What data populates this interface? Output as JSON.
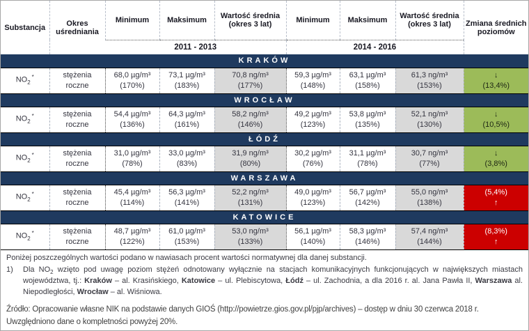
{
  "colors": {
    "banner_navy": "#1F3A5F",
    "decrease_green": "#9CBB59",
    "increase_red": "#CC0000",
    "average_gray": "#D9D9D9"
  },
  "header": {
    "substance": "Substancja",
    "period": "Okres uśredniania",
    "min": "Minimum",
    "max": "Maksimum",
    "avg": "Wartość średnia (okres 3 lat)",
    "change": "Zmiana średnich poziomów",
    "range1": "2011 - 2013",
    "range2": "2014 - 2016"
  },
  "cities": [
    {
      "name": "KRAKÓW",
      "substance": {
        "base": "NO",
        "sub": "2",
        "mark": "*"
      },
      "period": "stężenia roczne",
      "p1": {
        "min": {
          "v": "68,0 µg/m³",
          "p": "(170%)"
        },
        "max": {
          "v": "73,1 µg/m³",
          "p": "(183%)"
        },
        "avg": {
          "v": "70,8 ng/m³",
          "p": "(177%)"
        }
      },
      "p2": {
        "min": {
          "v": "59,3 µg/m³",
          "p": "(148%)"
        },
        "max": {
          "v": "63,1 µg/m³",
          "p": "(158%)"
        },
        "avg": {
          "v": "61,3 ng/m³",
          "p": "(153%)"
        }
      },
      "change": {
        "variant": "down",
        "line1": "↓",
        "line2": "(13,4%)"
      }
    },
    {
      "name": "WROCŁAW",
      "substance": {
        "base": "NO",
        "sub": "2",
        "mark": "*"
      },
      "period": "stężenia roczne",
      "p1": {
        "min": {
          "v": "54,4 µg/m³",
          "p": "(136%)"
        },
        "max": {
          "v": "64,3 µg/m³",
          "p": "(161%)"
        },
        "avg": {
          "v": "58,2 ng/m³",
          "p": "(146%)"
        }
      },
      "p2": {
        "min": {
          "v": "49,2 µg/m³",
          "p": "(123%)"
        },
        "max": {
          "v": "53,8 µg/m³",
          "p": "(135%)"
        },
        "avg": {
          "v": "52,1 ng/m³",
          "p": "(130%)"
        }
      },
      "change": {
        "variant": "down",
        "line1": "↓",
        "line2": "(10,5%)"
      }
    },
    {
      "name": "ŁÓDŹ",
      "substance": {
        "base": "NO",
        "sub": "2",
        "mark": "*"
      },
      "period": "stężenia roczne",
      "p1": {
        "min": {
          "v": "31,0 µg/m³",
          "p": "(78%)"
        },
        "max": {
          "v": "33,0 µg/m³",
          "p": "(83%)"
        },
        "avg": {
          "v": "31,9 ng/m³",
          "p": "(80%)"
        }
      },
      "p2": {
        "min": {
          "v": "30,2 µg/m³",
          "p": "(76%)"
        },
        "max": {
          "v": "31,1 µg/m³",
          "p": "(78%)"
        },
        "avg": {
          "v": "30,7 ng/m³",
          "p": "(77%)"
        }
      },
      "change": {
        "variant": "down",
        "line1": "↓",
        "line2": "(3,8%)"
      }
    },
    {
      "name": "WARSZAWA",
      "substance": {
        "base": "NO",
        "sub": "2",
        "mark": "*"
      },
      "period": "stężenia roczne",
      "p1": {
        "min": {
          "v": "45,4 µg/m³",
          "p": "(114%)"
        },
        "max": {
          "v": "56,3 µg/m³",
          "p": "(141%)"
        },
        "avg": {
          "v": "52,2 ng/m³",
          "p": "(131%)"
        }
      },
      "p2": {
        "min": {
          "v": "49,0 µg/m³",
          "p": "(123%)"
        },
        "max": {
          "v": "56,7 µg/m³",
          "p": "(142%)"
        },
        "avg": {
          "v": "55,0 ng/m³",
          "p": "(138%)"
        }
      },
      "change": {
        "variant": "up",
        "line1": "(5,4%)",
        "line2": "↑"
      }
    },
    {
      "name": "KATOWICE",
      "substance": {
        "base": "NO",
        "sub": "2",
        "mark": "*"
      },
      "period": "stężenia roczne",
      "p1": {
        "min": {
          "v": "48,7 µg/m³",
          "p": "(122%)"
        },
        "max": {
          "v": "61,0 µg/m³",
          "p": "(153%)"
        },
        "avg": {
          "v": "53,0 ng/m³",
          "p": "(133%)"
        }
      },
      "p2": {
        "min": {
          "v": "56,1 µg/m³",
          "p": "(140%)"
        },
        "max": {
          "v": "58,3 µg/m³",
          "p": "(146%)"
        },
        "avg": {
          "v": "57,4 ng/m³",
          "p": "(144%)"
        }
      },
      "change": {
        "variant": "up",
        "line1": "(8,3%)",
        "line2": "↑"
      }
    }
  ],
  "notes": {
    "percent_note": "Poniżej poszczególnych wartości podano w nawiasach procent wartości normatywnej dla danej substancji.",
    "footnote_num": "1)",
    "footnote_rich": [
      {
        "t": "Dla NO"
      },
      {
        "t": "2",
        "sub": true
      },
      {
        "t": " wzięto pod uwagę poziom stężeń odnotowany wyłącznie na stacjach komunikacyjnych funkcjonujących w największych miastach województwa, tj.: "
      },
      {
        "t": "Kraków",
        "b": true
      },
      {
        "t": " – al. Krasińskiego, "
      },
      {
        "t": "Katowice",
        "b": true
      },
      {
        "t": " – ul. Plebiscytowa, "
      },
      {
        "t": "Łódź",
        "b": true
      },
      {
        "t": " – ul. Zachodnia, a dla 2016 r. al. Jana Pawła II, "
      },
      {
        "t": "Warszawa",
        "b": true
      },
      {
        "t": " al. Niepodległości, "
      },
      {
        "t": "Wrocław",
        "b": true
      },
      {
        "t": " – al. Wiśniowa."
      }
    ],
    "source_line1": "Źródło: Opracowanie własne NIK na podstawie danych GIOŚ (http://powietrze.gios.gov.pl/pjp/archives) – dostęp w dniu 30 czerwca 2018 r.",
    "source_line2": "Uwzględniono dane o kompletności powyżej 20%."
  }
}
